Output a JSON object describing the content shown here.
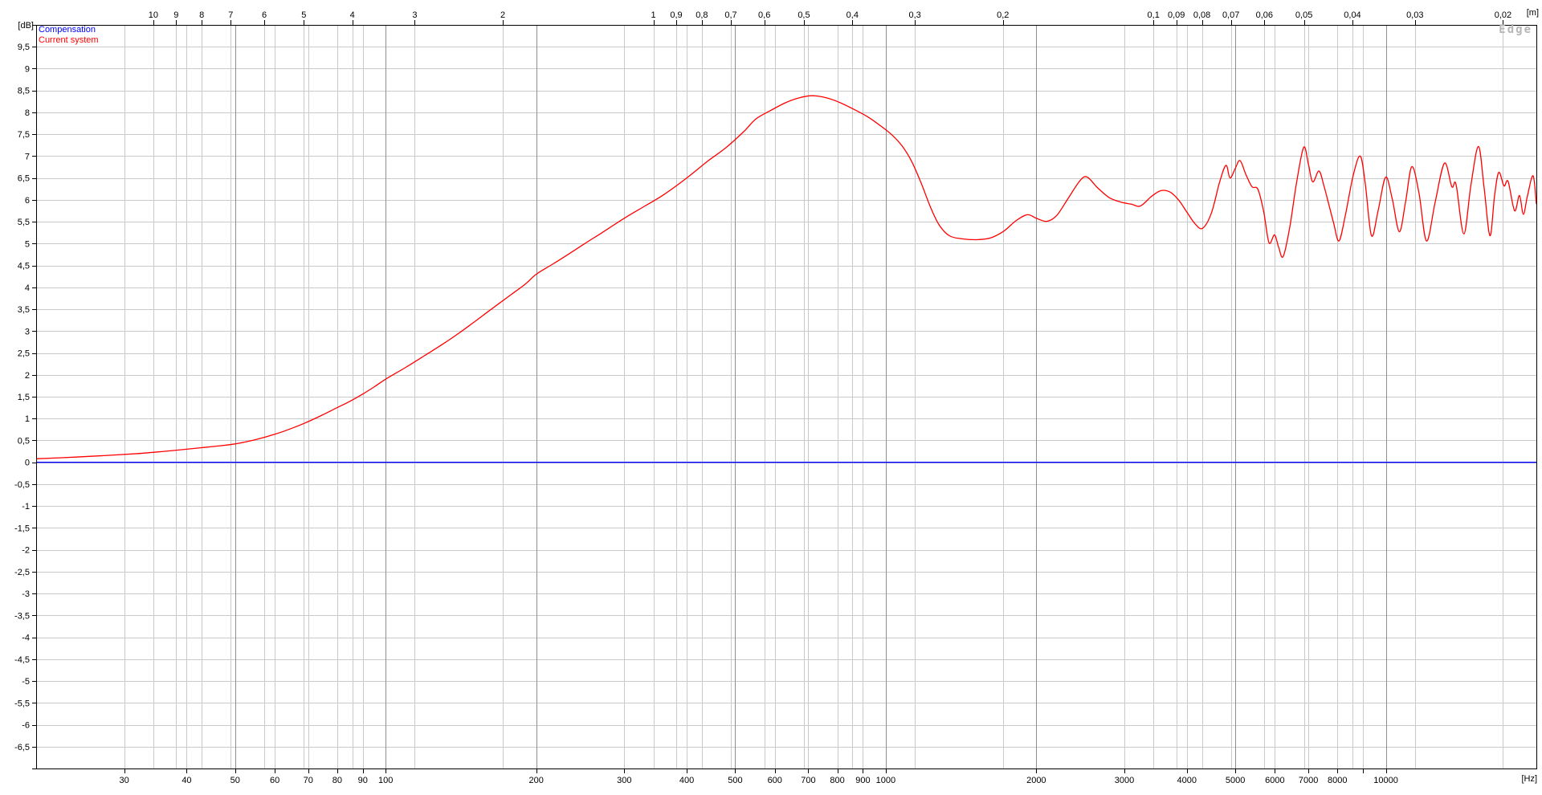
{
  "window": {
    "background": "#ffffff",
    "watermark_text": "Edge"
  },
  "colors": {
    "grid_light": "#c9c9c9",
    "grid_dark": "#8f8f8f",
    "axis": "#000000",
    "watermark": "#b6b6b6",
    "compensation": "#0000ff",
    "current_system": "#ff0000"
  },
  "legend": {
    "position": "top-left",
    "items": [
      {
        "label": "Compensation",
        "color": "#0000ff"
      },
      {
        "label": "Current system",
        "color": "#ff0000"
      }
    ]
  },
  "chart_data": {
    "type": "line",
    "title": "",
    "watermark": "Edge",
    "decimal_separator": ",",
    "y_axis": {
      "unit_label": "[dB]",
      "min": -7,
      "max": 10,
      "grid_step": 0.5,
      "label_min": -6.5,
      "label_max": 9.5
    },
    "x_axis": {
      "unit_label": "[Hz]",
      "scale": "log",
      "min": 20,
      "max": 20000,
      "ticks": [
        {
          "v": 30,
          "label": "30"
        },
        {
          "v": 40,
          "label": "40"
        },
        {
          "v": 50,
          "label": "50"
        },
        {
          "v": 60,
          "label": "60"
        },
        {
          "v": 70,
          "label": "70"
        },
        {
          "v": 80,
          "label": "80"
        },
        {
          "v": 90,
          "label": "90"
        },
        {
          "v": 100,
          "label": "100"
        },
        {
          "v": 200,
          "label": "200"
        },
        {
          "v": 300,
          "label": "300"
        },
        {
          "v": 400,
          "label": "400"
        },
        {
          "v": 500,
          "label": "500"
        },
        {
          "v": 600,
          "label": "600"
        },
        {
          "v": 700,
          "label": "700"
        },
        {
          "v": 800,
          "label": "800"
        },
        {
          "v": 900,
          "label": "900"
        },
        {
          "v": 1000,
          "label": "1000"
        },
        {
          "v": 2000,
          "label": "2000"
        },
        {
          "v": 3000,
          "label": "3000"
        },
        {
          "v": 4000,
          "label": "4000"
        },
        {
          "v": 5000,
          "label": "5000"
        },
        {
          "v": 6000,
          "label": "6000"
        },
        {
          "v": 7000,
          "label": "7000"
        },
        {
          "v": 8000,
          "label": "8000"
        },
        {
          "v": 9000,
          "label": ""
        },
        {
          "v": 10000,
          "label": "10000"
        }
      ],
      "emphasized": [
        50,
        100,
        200,
        500,
        1000,
        2000,
        5000,
        10000
      ]
    },
    "top_axis": {
      "unit_label": "[m]",
      "quantity": "wavelength",
      "speed_of_sound_mps": 343,
      "ticks": [
        {
          "v": 10,
          "label": "10"
        },
        {
          "v": 9,
          "label": "9"
        },
        {
          "v": 8,
          "label": "8"
        },
        {
          "v": 7,
          "label": "7"
        },
        {
          "v": 6,
          "label": "6"
        },
        {
          "v": 5,
          "label": "5"
        },
        {
          "v": 4,
          "label": "4"
        },
        {
          "v": 3,
          "label": "3"
        },
        {
          "v": 2,
          "label": "2"
        },
        {
          "v": 1,
          "label": "1"
        },
        {
          "v": 0.9,
          "label": "0,9"
        },
        {
          "v": 0.8,
          "label": "0,8"
        },
        {
          "v": 0.7,
          "label": "0,7"
        },
        {
          "v": 0.6,
          "label": "0,6"
        },
        {
          "v": 0.5,
          "label": "0,5"
        },
        {
          "v": 0.4,
          "label": "0,4"
        },
        {
          "v": 0.3,
          "label": "0,3"
        },
        {
          "v": 0.2,
          "label": "0,2"
        },
        {
          "v": 0.1,
          "label": "0,1"
        },
        {
          "v": 0.09,
          "label": "0,09"
        },
        {
          "v": 0.08,
          "label": "0,08"
        },
        {
          "v": 0.07,
          "label": "0,07"
        },
        {
          "v": 0.06,
          "label": "0,06"
        },
        {
          "v": 0.05,
          "label": "0,05"
        },
        {
          "v": 0.04,
          "label": "0,04"
        },
        {
          "v": 0.03,
          "label": "0,03"
        },
        {
          "v": 0.02,
          "label": "0,02"
        }
      ]
    },
    "series": [
      {
        "name": "Compensation",
        "color": "#0000ff",
        "points": [
          [
            20,
            0
          ],
          [
            20000,
            0
          ]
        ]
      },
      {
        "name": "Current system",
        "color": "#ff0000",
        "points": [
          [
            20,
            0.08
          ],
          [
            24,
            0.12
          ],
          [
            28,
            0.16
          ],
          [
            32,
            0.2
          ],
          [
            36,
            0.25
          ],
          [
            40,
            0.3
          ],
          [
            45,
            0.36
          ],
          [
            50,
            0.42
          ],
          [
            55,
            0.52
          ],
          [
            60,
            0.64
          ],
          [
            65,
            0.78
          ],
          [
            70,
            0.93
          ],
          [
            75,
            1.09
          ],
          [
            80,
            1.25
          ],
          [
            85,
            1.4
          ],
          [
            90,
            1.56
          ],
          [
            95,
            1.73
          ],
          [
            100,
            1.9
          ],
          [
            110,
            2.18
          ],
          [
            120,
            2.45
          ],
          [
            130,
            2.7
          ],
          [
            140,
            2.95
          ],
          [
            150,
            3.2
          ],
          [
            160,
            3.44
          ],
          [
            175,
            3.77
          ],
          [
            190,
            4.07
          ],
          [
            200,
            4.3
          ],
          [
            215,
            4.52
          ],
          [
            230,
            4.73
          ],
          [
            250,
            5.0
          ],
          [
            270,
            5.24
          ],
          [
            300,
            5.58
          ],
          [
            330,
            5.86
          ],
          [
            360,
            6.12
          ],
          [
            400,
            6.5
          ],
          [
            440,
            6.88
          ],
          [
            480,
            7.2
          ],
          [
            520,
            7.56
          ],
          [
            550,
            7.85
          ],
          [
            590,
            8.05
          ],
          [
            630,
            8.22
          ],
          [
            670,
            8.33
          ],
          [
            710,
            8.38
          ],
          [
            750,
            8.35
          ],
          [
            800,
            8.25
          ],
          [
            860,
            8.08
          ],
          [
            920,
            7.9
          ],
          [
            980,
            7.68
          ],
          [
            1030,
            7.48
          ],
          [
            1080,
            7.22
          ],
          [
            1130,
            6.85
          ],
          [
            1180,
            6.35
          ],
          [
            1230,
            5.82
          ],
          [
            1280,
            5.42
          ],
          [
            1340,
            5.18
          ],
          [
            1420,
            5.11
          ],
          [
            1520,
            5.09
          ],
          [
            1620,
            5.13
          ],
          [
            1720,
            5.28
          ],
          [
            1820,
            5.52
          ],
          [
            1920,
            5.66
          ],
          [
            2000,
            5.58
          ],
          [
            2100,
            5.51
          ],
          [
            2200,
            5.65
          ],
          [
            2320,
            6.05
          ],
          [
            2450,
            6.45
          ],
          [
            2530,
            6.52
          ],
          [
            2650,
            6.28
          ],
          [
            2800,
            6.05
          ],
          [
            2950,
            5.95
          ],
          [
            3100,
            5.9
          ],
          [
            3230,
            5.86
          ],
          [
            3400,
            6.08
          ],
          [
            3550,
            6.21
          ],
          [
            3700,
            6.18
          ],
          [
            3850,
            6.0
          ],
          [
            4000,
            5.72
          ],
          [
            4150,
            5.46
          ],
          [
            4300,
            5.35
          ],
          [
            4480,
            5.7
          ],
          [
            4650,
            6.4
          ],
          [
            4790,
            6.79
          ],
          [
            4880,
            6.5
          ],
          [
            5000,
            6.72
          ],
          [
            5110,
            6.9
          ],
          [
            5250,
            6.58
          ],
          [
            5400,
            6.3
          ],
          [
            5550,
            6.24
          ],
          [
            5700,
            5.72
          ],
          [
            5840,
            5.02
          ],
          [
            5990,
            5.2
          ],
          [
            6100,
            4.93
          ],
          [
            6230,
            4.7
          ],
          [
            6420,
            5.35
          ],
          [
            6620,
            6.35
          ],
          [
            6850,
            7.2
          ],
          [
            7000,
            6.82
          ],
          [
            7140,
            6.41
          ],
          [
            7350,
            6.66
          ],
          [
            7520,
            6.32
          ],
          [
            7680,
            5.92
          ],
          [
            7860,
            5.48
          ],
          [
            8060,
            5.06
          ],
          [
            8300,
            5.65
          ],
          [
            8600,
            6.55
          ],
          [
            8890,
            7.0
          ],
          [
            9100,
            6.35
          ],
          [
            9360,
            5.18
          ],
          [
            9650,
            5.75
          ],
          [
            9990,
            6.52
          ],
          [
            10300,
            6.02
          ],
          [
            10640,
            5.27
          ],
          [
            10950,
            5.95
          ],
          [
            11270,
            6.76
          ],
          [
            11650,
            6.15
          ],
          [
            12060,
            5.06
          ],
          [
            12550,
            5.95
          ],
          [
            13100,
            6.84
          ],
          [
            13550,
            6.3
          ],
          [
            13820,
            6.35
          ],
          [
            14320,
            5.22
          ],
          [
            14800,
            6.35
          ],
          [
            15320,
            7.22
          ],
          [
            15720,
            6.28
          ],
          [
            16150,
            5.18
          ],
          [
            16500,
            6.1
          ],
          [
            16820,
            6.63
          ],
          [
            17230,
            6.32
          ],
          [
            17560,
            6.42
          ],
          [
            18090,
            5.75
          ],
          [
            18500,
            6.1
          ],
          [
            18840,
            5.67
          ],
          [
            19200,
            6.1
          ],
          [
            19700,
            6.55
          ],
          [
            20000,
            5.9
          ]
        ]
      }
    ]
  }
}
